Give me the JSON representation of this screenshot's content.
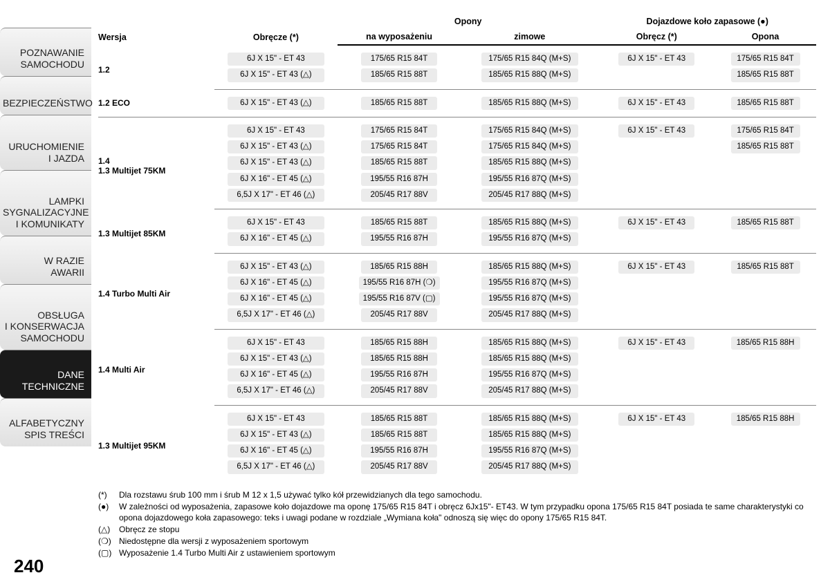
{
  "page_number": "240",
  "sidebar": [
    {
      "lines": [
        "POZNAWANIE",
        "SAMOCHODU"
      ],
      "active": false,
      "h": "h1"
    },
    {
      "lines": [
        "BEZPIECZEŃSTWO"
      ],
      "active": false,
      "h": ""
    },
    {
      "lines": [
        "URUCHOMIENIE",
        "I JAZDA"
      ],
      "active": false,
      "h": "h2"
    },
    {
      "lines": [
        "LAMPKI",
        "SYGNALIZACYJNE",
        "I KOMUNIKATY"
      ],
      "active": false,
      "h": "h3"
    },
    {
      "lines": [
        "W RAZIE",
        "AWARII"
      ],
      "active": false,
      "h": "h1"
    },
    {
      "lines": [
        "OBSŁUGA",
        "I KONSERWACJA",
        "SAMOCHODU"
      ],
      "active": false,
      "h": "h3"
    },
    {
      "lines": [
        "DANE",
        "TECHNICZNE"
      ],
      "active": true,
      "h": "h1"
    },
    {
      "lines": [
        "ALFABETYCZNY",
        "SPIS TREŚCI"
      ],
      "active": false,
      "h": "h1"
    }
  ],
  "headers": {
    "version": "Wersja",
    "rims": "Obręcze (*)",
    "tyres": "Opony",
    "tyres_std": "na wyposażeniu",
    "tyres_winter": "zimowe",
    "spare": "Dojazdowe koło zapasowe (●)",
    "spare_rim": "Obręcz (*)",
    "spare_tyre": "Opona"
  },
  "groups": [
    {
      "version": "1.2",
      "rows": [
        {
          "rim": "6J X 15\" - ET 43",
          "t1": "175/65 R15 84T",
          "t2": "175/65 R15 84Q (M+S)",
          "sr": "6J X 15\" - ET 43",
          "st": "175/65 R15 84T"
        },
        {
          "rim": "6J X 15\" - ET 43 (△)",
          "t1": "185/65 R15 88T",
          "t2": "185/65 R15 88Q (M+S)",
          "sr": "",
          "st": "185/65 R15 88T"
        }
      ]
    },
    {
      "version": "1.2 ECO",
      "rows": [
        {
          "rim": "6J X 15\" - ET 43 (△)",
          "t1": "185/65 R15 88T",
          "t2": "185/65 R15 88Q (M+S)",
          "sr": "6J X 15\" - ET 43",
          "st": "185/65 R15 88T"
        }
      ]
    },
    {
      "version": "1.4\n1.3 Multijet 75KM",
      "rows": [
        {
          "rim": "6J X 15\" - ET 43",
          "t1": "175/65 R15 84T",
          "t2": "175/65 R15 84Q (M+S)",
          "sr": "6J X 15\" - ET 43",
          "st": "175/65 R15 84T"
        },
        {
          "rim": "6J X 15\" - ET 43 (△)",
          "t1": "175/65 R15 84T",
          "t2": "175/65 R15 84Q (M+S)",
          "sr": "",
          "st": "185/65 R15 88T"
        },
        {
          "rim": "6J X 15\" - ET 43 (△)",
          "t1": "185/65 R15 88T",
          "t2": "185/65 R15 88Q (M+S)",
          "sr": "",
          "st": ""
        },
        {
          "rim": "6J X 16\" - ET 45 (△)",
          "t1": "195/55 R16 87H",
          "t2": "195/55 R16 87Q (M+S)",
          "sr": "",
          "st": ""
        },
        {
          "rim": "6,5J X 17\" - ET 46 (△)",
          "t1": "205/45 R17 88V",
          "t2": "205/45 R17 88Q (M+S)",
          "sr": "",
          "st": ""
        }
      ]
    },
    {
      "version": "1.3 Multijet 85KM",
      "rows": [
        {
          "rim": "6J X 15\" - ET 43",
          "t1": "185/65 R15 88T",
          "t2": "185/65 R15 88Q (M+S)",
          "sr": "6J X 15\" - ET 43",
          "st": "185/65 R15 88T"
        },
        {
          "rim": "6J X 16\" - ET 45 (△)",
          "t1": "195/55 R16 87H",
          "t2": "195/55 R16 87Q (M+S)",
          "sr": "",
          "st": ""
        }
      ]
    },
    {
      "version": "1.4 Turbo Multi Air",
      "rows": [
        {
          "rim": "6J X 15\" - ET 43 (△)",
          "t1": "185/65 R15 88H",
          "t2": "185/65 R15 88Q (M+S)",
          "sr": "6J X 15\" - ET 43",
          "st": "185/65 R15 88T"
        },
        {
          "rim": "6J X 16\" - ET 45 (△)",
          "t1": "195/55 R16 87H (❍)",
          "t2": "195/55 R16 87Q (M+S)",
          "sr": "",
          "st": ""
        },
        {
          "rim": "6J X 16\" - ET 45 (△)",
          "t1": "195/55 R16 87V (▢)",
          "t2": "195/55 R16 87Q (M+S)",
          "sr": "",
          "st": ""
        },
        {
          "rim": "6,5J X 17\" - ET 46 (△)",
          "t1": "205/45 R17 88V",
          "t2": "205/45 R17 88Q (M+S)",
          "sr": "",
          "st": ""
        }
      ]
    },
    {
      "version": "1.4 Multi Air",
      "rows": [
        {
          "rim": "6J X 15\" - ET 43",
          "t1": "185/65 R15 88H",
          "t2": "185/65 R15 88Q (M+S)",
          "sr": "6J X 15\" - ET 43",
          "st": "185/65 R15 88H"
        },
        {
          "rim": "6J X 15\" - ET 43 (△)",
          "t1": "185/65 R15 88H",
          "t2": "185/65 R15 88Q (M+S)",
          "sr": "",
          "st": ""
        },
        {
          "rim": "6J X 16\" - ET 45 (△)",
          "t1": "195/55 R16 87H",
          "t2": "195/55 R16 87Q (M+S)",
          "sr": "",
          "st": ""
        },
        {
          "rim": "6,5J X 17\" - ET 46 (△)",
          "t1": "205/45 R17 88V",
          "t2": "205/45 R17 88Q (M+S)",
          "sr": "",
          "st": ""
        }
      ]
    },
    {
      "version": "1.3 Multijet 95KM",
      "rows": [
        {
          "rim": "6J X 15\" - ET 43",
          "t1": "185/65 R15 88T",
          "t2": "185/65 R15 88Q (M+S)",
          "sr": "6J X 15\" - ET 43",
          "st": "185/65 R15 88H"
        },
        {
          "rim": "6J X 15\" - ET 43 (△)",
          "t1": "185/65 R15 88T",
          "t2": "185/65 R15 88Q (M+S)",
          "sr": "",
          "st": ""
        },
        {
          "rim": "6J X 16\" - ET 45 (△)",
          "t1": "195/55 R16 87H",
          "t2": "195/55 R16 87Q (M+S)",
          "sr": "",
          "st": ""
        },
        {
          "rim": "6,5J X 17\" - ET 46 (△)",
          "t1": "205/45 R17 88V",
          "t2": "205/45 R17 88Q (M+S)",
          "sr": "",
          "st": ""
        }
      ],
      "last": true
    }
  ],
  "footnotes": [
    {
      "sym": "(*)",
      "text": "Dla rozstawu śrub 100 mm i śrub M 12 x 1,5 używać tylko kół przewidzianych dla tego samochodu."
    },
    {
      "sym": "(●)",
      "text": "W zależności od wyposażenia, zapasowe koło dojazdowe ma oponę 175/65 R15 84T i obręcz 6Jx15\"- ET43. W tym przypadku opona 175/65 R15 84T posiada te same charakterystyki co opona dojazdowego koła zapasowego: teks i uwagi podane w rozdziale „Wymiana koła\" odnoszą się więc do opony 175/65 R15 84T."
    },
    {
      "sym": "(△)",
      "text": "Obręcz ze stopu"
    },
    {
      "sym": "(❍)",
      "text": "Niedostępne dla wersji z wyposażeniem sportowym"
    },
    {
      "sym": "(▢)",
      "text": "Wyposażenie 1.4 Turbo Multi Air z ustawieniem sportowym"
    }
  ]
}
